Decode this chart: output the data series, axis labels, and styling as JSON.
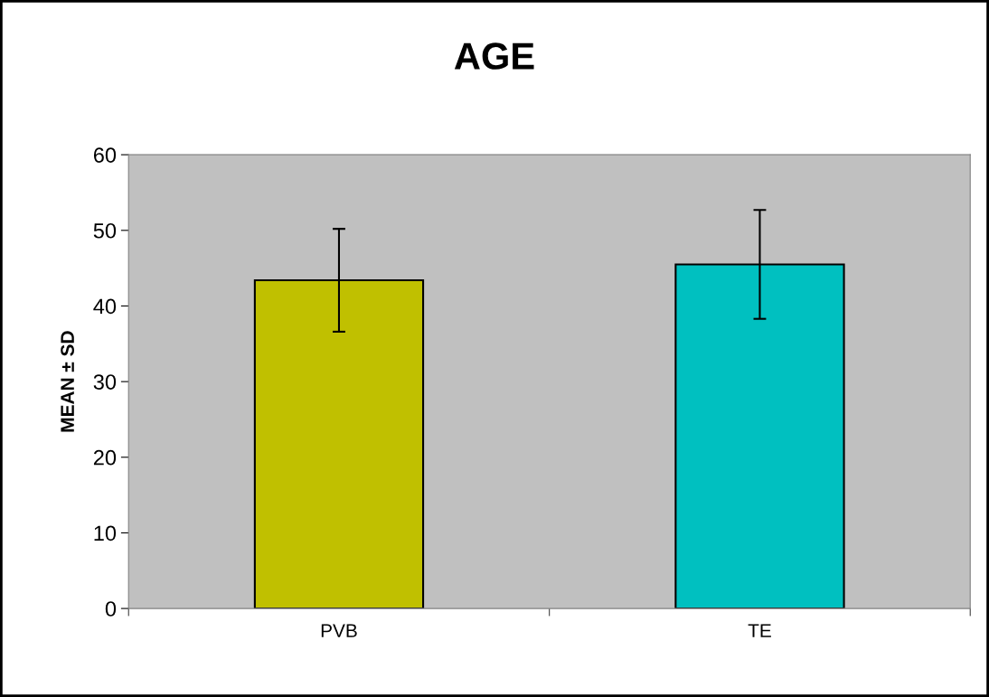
{
  "chart_data": {
    "type": "bar",
    "title": "AGE",
    "ylabel": "MEAN ± SD",
    "categories": [
      "PVB",
      "TE"
    ],
    "values": [
      43.4,
      45.5
    ],
    "errors": [
      6.8,
      7.2
    ],
    "colors": [
      "#c0c000",
      "#00c0c0"
    ],
    "ylim": [
      0,
      60
    ],
    "yticks": [
      0,
      10,
      20,
      30,
      40,
      50,
      60
    ],
    "grid": false,
    "legend": false
  }
}
